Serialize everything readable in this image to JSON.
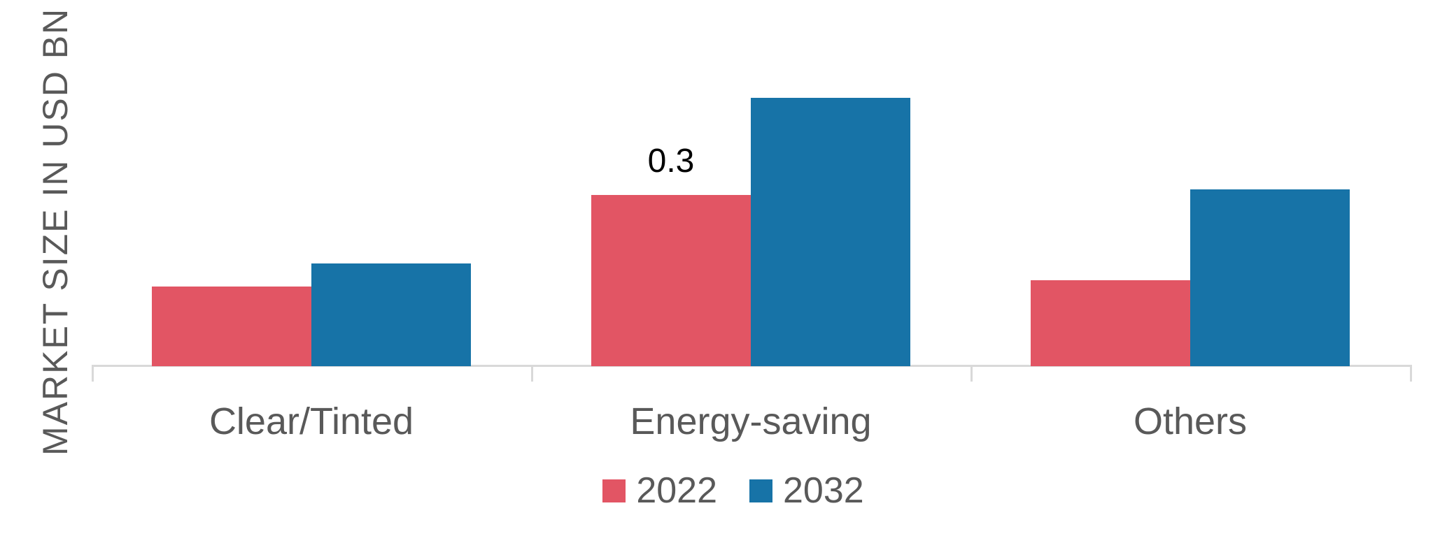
{
  "chart_data": {
    "type": "bar",
    "title": "",
    "xlabel": "",
    "ylabel": "MARKET SIZE IN USD BN",
    "categories": [
      "Clear/Tinted",
      "Energy-saving",
      "Others"
    ],
    "series": [
      {
        "name": "2022",
        "color": "#E25564",
        "values": [
          0.14,
          0.3,
          0.15
        ]
      },
      {
        "name": "2032",
        "color": "#1773A7",
        "values": [
          0.18,
          0.47,
          0.31
        ]
      }
    ],
    "annotations": [
      {
        "text": "0.3",
        "series": "2022",
        "category": "Energy-saving"
      }
    ],
    "ylim": [
      0,
      0.5
    ],
    "grid": false,
    "y_tick_labels_visible": false,
    "legend_position": "bottom",
    "axis_color": "#D9D9D9",
    "text_color": "#595959",
    "data_label_color": "#000000",
    "background_color": "#ffffff"
  }
}
